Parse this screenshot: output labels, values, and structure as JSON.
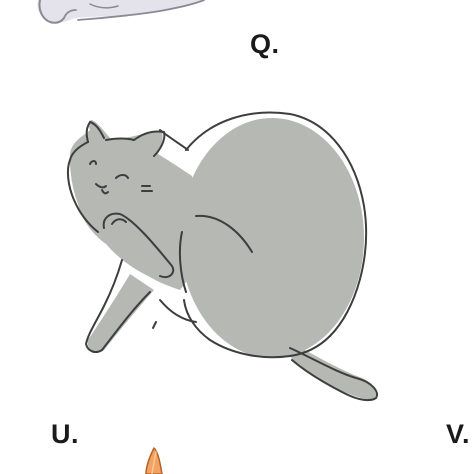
{
  "labels": {
    "q": "Q.",
    "u": "U.",
    "v": "V."
  },
  "illustrations": {
    "top_cat": {
      "icon": "sleeping-cat-partial-icon",
      "fill": "#e4e3ec",
      "stroke": "#8a8a92"
    },
    "main_cat": {
      "icon": "cat-grooming-icon",
      "fill": "#b6b9b3",
      "stroke": "#3e3e3e"
    },
    "bottom_item": {
      "icon": "orange-tip-partial-icon",
      "fill": "#f4a262",
      "stroke": "#b56328"
    }
  }
}
